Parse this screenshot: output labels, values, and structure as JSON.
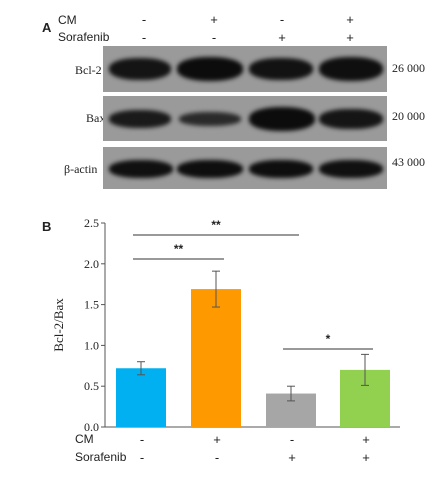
{
  "panel_a": {
    "label": "A",
    "conditions": [
      {
        "name": "CM",
        "values": [
          "-",
          "+",
          "-",
          "+"
        ]
      },
      {
        "name": "Sorafenib",
        "values": [
          "-",
          "-",
          "+",
          "+"
        ]
      }
    ],
    "blots": [
      {
        "name": "Bcl-2",
        "mw": "26 000",
        "intensity": [
          0.88,
          0.98,
          0.9,
          0.94
        ]
      },
      {
        "name": "Bax",
        "mw": "20 000",
        "intensity": [
          0.8,
          0.6,
          0.98,
          0.86
        ]
      },
      {
        "name": "β-actin",
        "mw": "43 000",
        "intensity": [
          0.93,
          0.95,
          0.95,
          0.93
        ]
      }
    ]
  },
  "panel_b": {
    "label": "B",
    "conditions": [
      {
        "name": "CM",
        "values": [
          "-",
          "+",
          "-",
          "+"
        ]
      },
      {
        "name": "Sorafenib",
        "values": [
          "-",
          "-",
          "+",
          "+"
        ]
      }
    ],
    "significance": [
      {
        "text": "**",
        "from": 0,
        "to": 2
      },
      {
        "text": "**",
        "from": 0,
        "to": 1
      },
      {
        "text": "*",
        "from": 2,
        "to": 3
      }
    ]
  },
  "chart_data": {
    "type": "bar",
    "ylabel": "Bcl-2/Bax",
    "ylim": [
      0,
      2.5
    ],
    "yticks": [
      "0.0",
      "0.5",
      "1.0",
      "1.5",
      "2.0",
      "2.5"
    ],
    "categories": [
      "CM- Sorafenib-",
      "CM+ Sorafenib-",
      "CM- Sorafenib+",
      "CM+ Sorafenib+"
    ],
    "values": [
      0.72,
      1.69,
      0.41,
      0.7
    ],
    "errors": [
      0.08,
      0.22,
      0.09,
      0.19
    ],
    "colors": [
      "#00b0f0",
      "#ff9900",
      "#a6a6a6",
      "#92d050"
    ]
  }
}
